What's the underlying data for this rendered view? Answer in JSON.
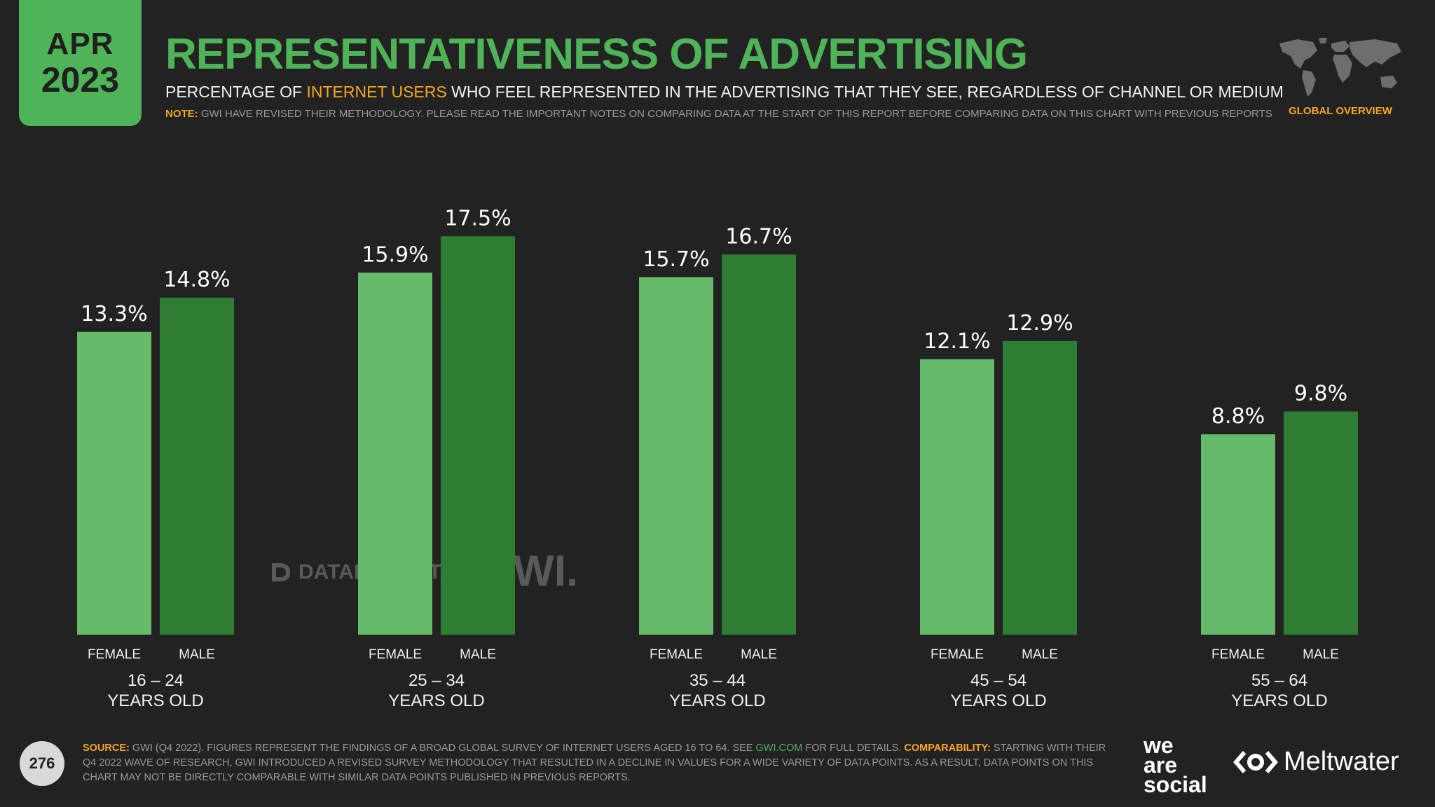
{
  "header": {
    "month": "APR",
    "year": "2023",
    "title": "REPRESENTATIVENESS OF ADVERTISING",
    "subtitle_pre": "PERCENTAGE OF ",
    "subtitle_highlight": "INTERNET USERS",
    "subtitle_post": " WHO FEEL REPRESENTED IN THE ADVERTISING THAT THEY SEE, REGARDLESS OF CHANNEL OR MEDIUM",
    "note_label": "NOTE:",
    "note_text": " GWI HAVE REVISED THEIR METHODOLOGY. PLEASE READ THE IMPORTANT NOTES ON COMPARING DATA AT THE START OF THIS REPORT BEFORE COMPARING DATA ON THIS CHART WITH PREVIOUS REPORTS",
    "region": "GLOBAL OVERVIEW"
  },
  "colors": {
    "female": "#66bb6a",
    "male": "#2e7d32",
    "accent": "#4fb358",
    "highlight": "#f5a623"
  },
  "chart_data": {
    "type": "bar",
    "title": "REPRESENTATIVENESS OF ADVERTISING",
    "categories": [
      "16 – 24|YEARS OLD",
      "25 – 34|YEARS OLD",
      "35 – 44|YEARS OLD",
      "45 – 54|YEARS OLD",
      "55 – 64|YEARS OLD"
    ],
    "series": [
      {
        "name": "FEMALE",
        "values": [
          13.3,
          15.9,
          15.7,
          12.1,
          8.8
        ]
      },
      {
        "name": "MALE",
        "values": [
          14.8,
          17.5,
          16.7,
          12.9,
          9.8
        ]
      }
    ],
    "value_suffix": "%",
    "ylim": [
      0,
      20
    ],
    "xlabel": "",
    "ylabel": ""
  },
  "watermarks": {
    "datareportal": "DATAREPORTAL",
    "gwi": "GWI."
  },
  "footer": {
    "page_number": "276",
    "source_label": "SOURCE:",
    "source_text_1": " GWI (Q4 2022). FIGURES REPRESENT THE FINDINGS OF A BROAD GLOBAL SURVEY OF INTERNET USERS AGED 16 TO 64. SEE ",
    "source_link": "GWI.COM",
    "source_text_2": " FOR FULL DETAILS. ",
    "comparability_label": "COMPARABILITY:",
    "comparability_text": " STARTING WITH THEIR Q4 2022 WAVE OF RESEARCH, GWI INTRODUCED A REVISED SURVEY METHODOLOGY THAT RESULTED IN A DECLINE IN VALUES FOR A WIDE VARIETY OF DATA POINTS. AS A RESULT, DATA POINTS ON THIS CHART MAY NOT BE DIRECTLY COMPARABLE WITH SIMILAR DATA POINTS PUBLISHED IN PREVIOUS REPORTS.",
    "logo_line1": "we",
    "logo_line2": "are",
    "logo_line3": "social",
    "meltwater": "Meltwater"
  }
}
